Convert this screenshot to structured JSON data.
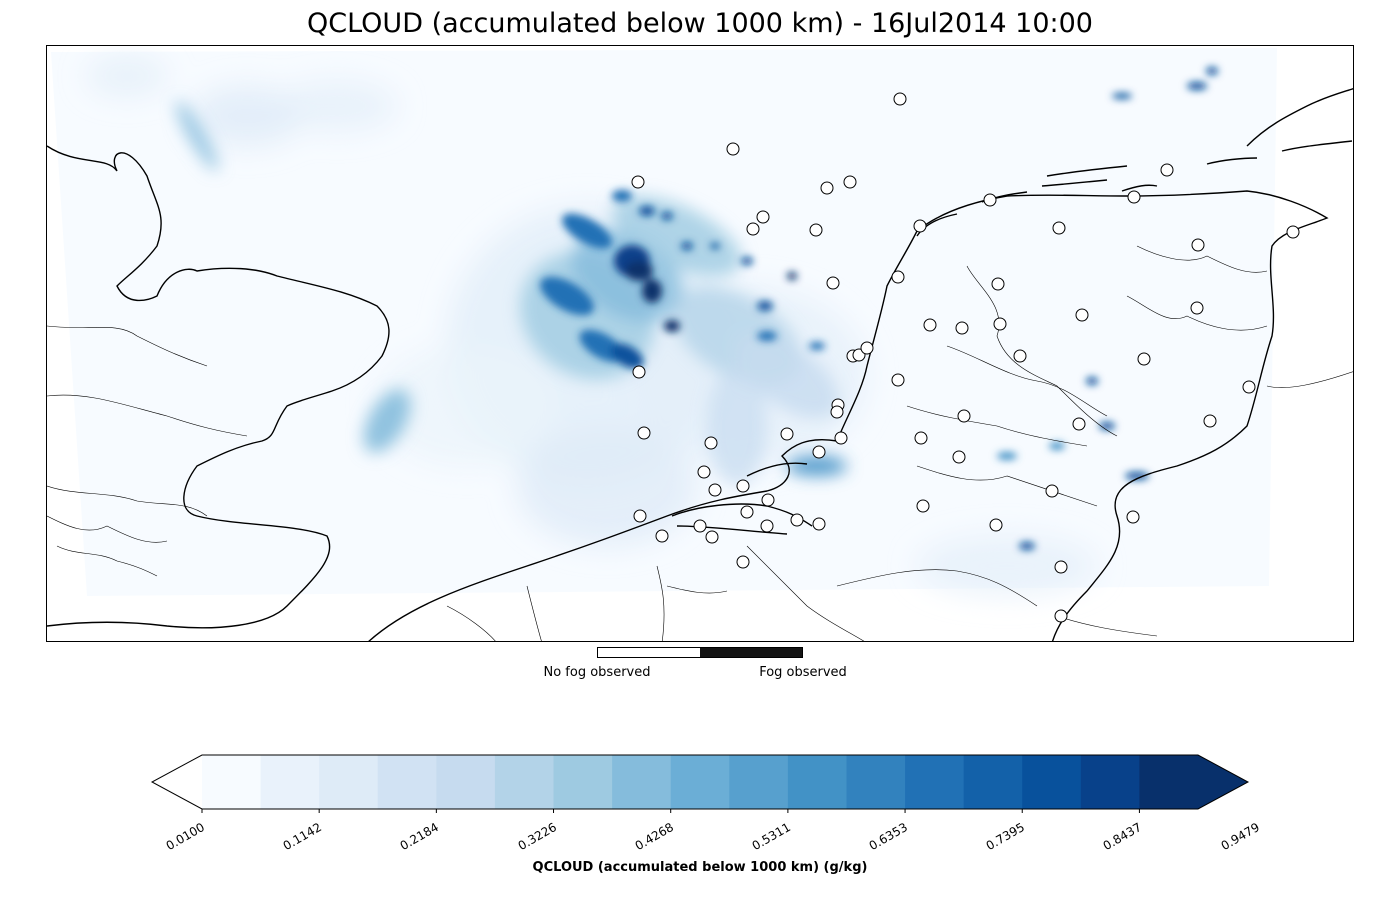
{
  "title": "QCLOUD (accumulated below 1000 km) - 16Jul2014 10:00",
  "fog_legend": {
    "no_fog_label": "No fog observed",
    "fog_label": "Fog observed"
  },
  "colorbar": {
    "label": "QCLOUD (accumulated below 1000 km) (g/kg)",
    "tick_labels": [
      "0.0100",
      "0.1142",
      "0.2184",
      "0.3226",
      "0.4268",
      "0.5311",
      "0.6353",
      "0.7395",
      "0.8437",
      "0.9479"
    ],
    "colors": [
      "#f7fbff",
      "#e9f2fb",
      "#deebf7",
      "#d1e2f3",
      "#c6dbef",
      "#b3d3e8",
      "#9ecae1",
      "#85bcdc",
      "#6baed6",
      "#57a0ce",
      "#4292c6",
      "#3282be",
      "#2171b5",
      "#1361a9",
      "#08519c",
      "#08418a",
      "#08306b"
    ],
    "under_color": "#ffffff",
    "over_color": "#08306b"
  },
  "colors": {
    "field_background": "#f7fbff",
    "coastline": "#000000",
    "fog_observed": "#141414",
    "no_fog_observed": "#ffffff"
  }
}
